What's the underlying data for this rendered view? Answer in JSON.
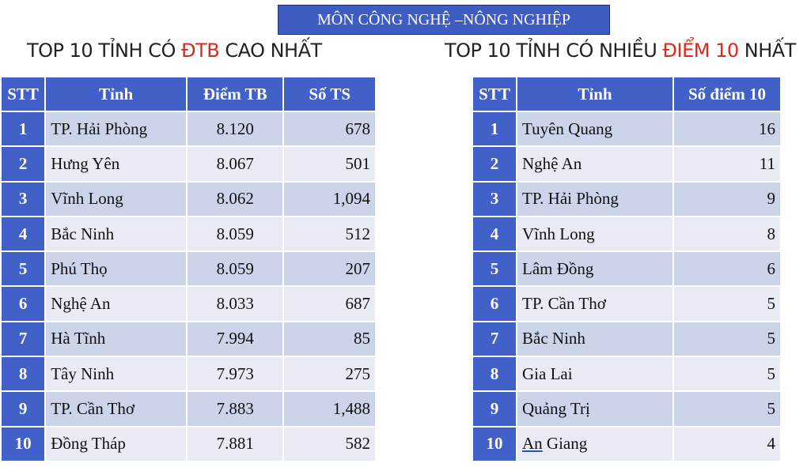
{
  "banner": "MÔN CÔNG NGHỆ –NÔNG NGHIỆP",
  "left": {
    "title_pre": "TOP 10 TỈNH CÓ ",
    "title_hl": "ĐTB",
    "title_post": " CAO NHẤT",
    "headers": [
      "STT",
      "Tỉnh",
      "Điểm TB",
      "Số TS"
    ],
    "rows": [
      {
        "stt": "1",
        "tinh": "TP. Hải Phòng",
        "dtb": "8.120",
        "sots": "678"
      },
      {
        "stt": "2",
        "tinh": "Hưng Yên",
        "dtb": "8.067",
        "sots": "501"
      },
      {
        "stt": "3",
        "tinh": "Vĩnh Long",
        "dtb": "8.062",
        "sots": "1,094"
      },
      {
        "stt": "4",
        "tinh": "Bắc Ninh",
        "dtb": "8.059",
        "sots": "512"
      },
      {
        "stt": "5",
        "tinh": "Phú Thọ",
        "dtb": "8.059",
        "sots": "207"
      },
      {
        "stt": "6",
        "tinh": "Nghệ An",
        "dtb": "8.033",
        "sots": "687"
      },
      {
        "stt": "7",
        "tinh": "Hà Tĩnh",
        "dtb": "7.994",
        "sots": "85"
      },
      {
        "stt": "8",
        "tinh": "Tây Ninh",
        "dtb": "7.973",
        "sots": "275"
      },
      {
        "stt": "9",
        "tinh": "TP. Cần Thơ",
        "dtb": "7.883",
        "sots": "1,488"
      },
      {
        "stt": "10",
        "tinh": "Đồng Tháp",
        "dtb": "7.881",
        "sots": "582"
      }
    ]
  },
  "right": {
    "title_pre": "TOP 10 TỈNH CÓ NHIỀU ",
    "title_hl": "ĐIỂM 10",
    "title_post": " NHẤT",
    "headers": [
      "STT",
      "Tỉnh",
      "Số điểm 10"
    ],
    "rows": [
      {
        "stt": "1",
        "tinh": "Tuyên Quang",
        "so10": "16"
      },
      {
        "stt": "2",
        "tinh": "Nghệ An",
        "so10": "11"
      },
      {
        "stt": "3",
        "tinh": "TP. Hải Phòng",
        "so10": "9"
      },
      {
        "stt": "4",
        "tinh": "Vĩnh Long",
        "so10": "8"
      },
      {
        "stt": "5",
        "tinh": "Lâm Đồng",
        "so10": "6"
      },
      {
        "stt": "6",
        "tinh": "TP. Cần Thơ",
        "so10": "5"
      },
      {
        "stt": "7",
        "tinh": "Bắc Ninh",
        "so10": "5"
      },
      {
        "stt": "8",
        "tinh": "Gia Lai",
        "so10": "5"
      },
      {
        "stt": "9",
        "tinh": "Quảng Trị",
        "so10": "5"
      },
      {
        "stt": "10",
        "tinh": "An Giang",
        "so10": "4"
      }
    ]
  }
}
